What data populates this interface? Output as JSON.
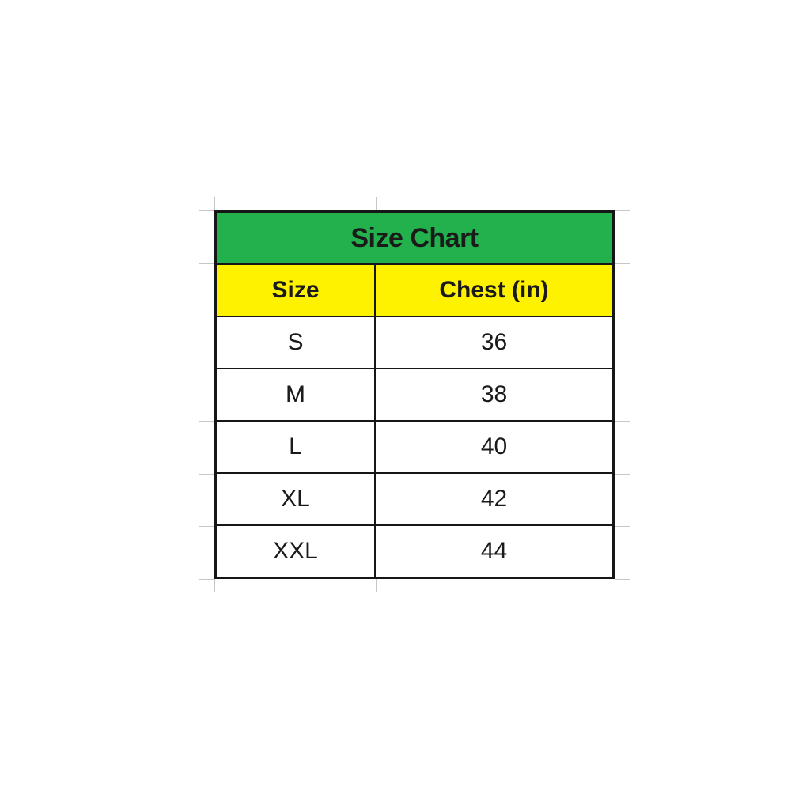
{
  "table": {
    "title": "Size Chart",
    "columns": [
      "Size",
      "Chest (in)"
    ],
    "rows": [
      {
        "size": "S",
        "chest": "36"
      },
      {
        "size": "M",
        "chest": "38"
      },
      {
        "size": "L",
        "chest": "40"
      },
      {
        "size": "XL",
        "chest": "42"
      },
      {
        "size": "XXL",
        "chest": "44"
      }
    ],
    "colors": {
      "title_bg": "#22b14c",
      "header_bg": "#fef200",
      "border": "#161616",
      "text": "#1a1a1a",
      "gridline": "#c6c6c6"
    }
  },
  "chart_data": {
    "type": "table",
    "title": "Size Chart",
    "columns": [
      "Size",
      "Chest (in)"
    ],
    "rows": [
      [
        "S",
        36
      ],
      [
        "M",
        38
      ],
      [
        "L",
        40
      ],
      [
        "XL",
        42
      ],
      [
        "XXL",
        44
      ]
    ]
  }
}
